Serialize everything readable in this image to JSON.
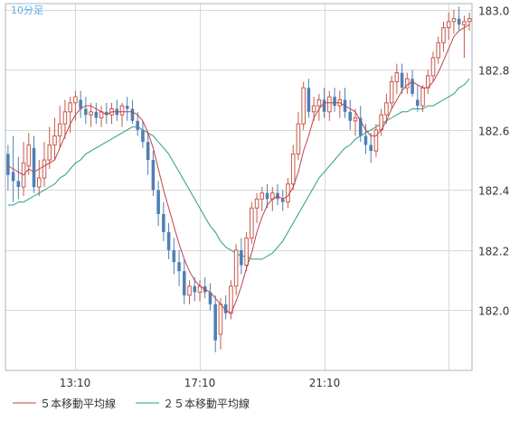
{
  "chart_data": {
    "type": "candlestick",
    "timeframe_label": "10分足",
    "x_tick_labels": [
      "13:10",
      "17:10",
      "21:10"
    ],
    "y_ticks": [
      182.0,
      182.2,
      182.4,
      182.6,
      182.8,
      183.0
    ],
    "y_tick_labels": [
      "182.0",
      "182.2",
      "182.4",
      "182.6",
      "182.8",
      "183.0"
    ],
    "ylim": [
      181.8,
      183.02
    ],
    "grid": true,
    "colors": {
      "up": "#c45a4a",
      "down": "#4f7fb5",
      "ma5": "#c0404a",
      "ma25": "#2aa078",
      "grid": "#d8d8d8",
      "axis": "#aab4bf",
      "timeframe_text": "#5aaee8"
    },
    "legend": [
      {
        "name": "５本移動平均線",
        "color": "#c0404a"
      },
      {
        "name": "２５本移動平均線",
        "color": "#2aa078"
      }
    ],
    "ohlc": [
      [
        182.52,
        182.55,
        182.4,
        182.45
      ],
      [
        182.46,
        182.58,
        182.36,
        182.43
      ],
      [
        182.43,
        182.51,
        182.37,
        182.41
      ],
      [
        182.41,
        182.56,
        182.38,
        182.49
      ],
      [
        182.48,
        182.59,
        182.45,
        182.55
      ],
      [
        182.54,
        182.58,
        182.39,
        182.41
      ],
      [
        182.41,
        182.5,
        182.38,
        182.44
      ],
      [
        182.44,
        182.56,
        182.41,
        182.5
      ],
      [
        182.5,
        182.61,
        182.47,
        182.55
      ],
      [
        182.55,
        182.64,
        182.5,
        182.58
      ],
      [
        182.58,
        182.68,
        182.54,
        182.62
      ],
      [
        182.62,
        182.7,
        182.57,
        182.66
      ],
      [
        182.66,
        182.71,
        182.59,
        182.69
      ],
      [
        182.69,
        182.73,
        182.63,
        182.71
      ],
      [
        182.7,
        182.73,
        182.64,
        182.67
      ],
      [
        182.67,
        182.71,
        182.62,
        182.65
      ],
      [
        182.65,
        182.69,
        182.61,
        182.66
      ],
      [
        182.66,
        182.69,
        182.62,
        182.64
      ],
      [
        182.64,
        182.68,
        182.61,
        182.66
      ],
      [
        182.66,
        182.69,
        182.62,
        182.65
      ],
      [
        182.65,
        182.69,
        182.62,
        182.67
      ],
      [
        182.67,
        182.7,
        182.63,
        182.65
      ],
      [
        182.65,
        182.69,
        182.61,
        182.68
      ],
      [
        182.68,
        182.71,
        182.63,
        182.67
      ],
      [
        182.67,
        182.7,
        182.62,
        182.63
      ],
      [
        182.63,
        182.66,
        182.58,
        182.6
      ],
      [
        182.6,
        182.63,
        182.54,
        182.56
      ],
      [
        182.56,
        182.59,
        182.45,
        182.5
      ],
      [
        182.5,
        182.53,
        182.38,
        182.4
      ],
      [
        182.4,
        182.43,
        182.28,
        182.32
      ],
      [
        182.32,
        182.36,
        182.23,
        182.26
      ],
      [
        182.26,
        182.29,
        182.17,
        182.2
      ],
      [
        182.2,
        182.24,
        182.12,
        182.16
      ],
      [
        182.16,
        182.2,
        182.08,
        182.13
      ],
      [
        182.13,
        182.17,
        182.02,
        182.05
      ],
      [
        182.05,
        182.1,
        182.02,
        182.08
      ],
      [
        182.08,
        182.11,
        182.03,
        182.06
      ],
      [
        182.06,
        182.1,
        182.03,
        182.08
      ],
      [
        182.08,
        182.11,
        182.04,
        182.06
      ],
      [
        182.06,
        182.09,
        182.0,
        182.02
      ],
      [
        182.02,
        182.05,
        181.86,
        181.9
      ],
      [
        181.92,
        182.04,
        181.87,
        182.02
      ],
      [
        182.02,
        182.05,
        181.97,
        181.99
      ],
      [
        181.99,
        182.1,
        181.97,
        182.08
      ],
      [
        182.08,
        182.22,
        182.05,
        182.2
      ],
      [
        182.2,
        182.24,
        182.12,
        182.15
      ],
      [
        182.15,
        182.26,
        182.13,
        182.24
      ],
      [
        182.24,
        182.36,
        182.22,
        182.34
      ],
      [
        182.34,
        182.39,
        182.29,
        182.37
      ],
      [
        182.37,
        182.41,
        182.33,
        182.39
      ],
      [
        182.39,
        182.42,
        182.34,
        182.37
      ],
      [
        182.37,
        182.41,
        182.33,
        182.39
      ],
      [
        182.39,
        182.42,
        182.35,
        182.37
      ],
      [
        182.37,
        182.4,
        182.33,
        182.36
      ],
      [
        182.36,
        182.44,
        182.34,
        182.42
      ],
      [
        182.42,
        182.55,
        182.4,
        182.52
      ],
      [
        182.52,
        182.66,
        182.5,
        182.62
      ],
      [
        182.62,
        182.76,
        182.6,
        182.74
      ],
      [
        182.74,
        182.77,
        182.64,
        182.66
      ],
      [
        182.66,
        182.71,
        182.63,
        182.68
      ],
      [
        182.68,
        182.72,
        182.63,
        182.7
      ],
      [
        182.7,
        182.74,
        182.64,
        182.66
      ],
      [
        182.66,
        182.73,
        182.63,
        182.71
      ],
      [
        182.71,
        182.74,
        182.66,
        182.68
      ],
      [
        182.68,
        182.73,
        182.64,
        182.7
      ],
      [
        182.7,
        182.74,
        182.64,
        182.66
      ],
      [
        182.66,
        182.7,
        182.6,
        182.63
      ],
      [
        182.63,
        182.67,
        182.58,
        182.64
      ],
      [
        182.64,
        182.68,
        182.56,
        182.58
      ],
      [
        182.58,
        182.62,
        182.52,
        182.55
      ],
      [
        182.55,
        182.59,
        182.49,
        182.53
      ],
      [
        182.53,
        182.62,
        182.51,
        182.6
      ],
      [
        182.6,
        182.67,
        182.58,
        182.65
      ],
      [
        182.65,
        182.72,
        182.62,
        182.69
      ],
      [
        182.69,
        182.78,
        182.67,
        182.76
      ],
      [
        182.76,
        182.82,
        182.72,
        182.79
      ],
      [
        182.79,
        182.82,
        182.72,
        182.74
      ],
      [
        182.74,
        182.79,
        182.72,
        182.77
      ],
      [
        182.77,
        182.8,
        182.71,
        182.72
      ],
      [
        182.7,
        182.75,
        182.66,
        182.68
      ],
      [
        182.68,
        182.75,
        182.66,
        182.74
      ],
      [
        182.74,
        182.8,
        182.72,
        182.78
      ],
      [
        182.78,
        182.86,
        182.76,
        182.84
      ],
      [
        182.84,
        182.91,
        182.82,
        182.89
      ],
      [
        182.89,
        182.96,
        182.86,
        182.94
      ],
      [
        182.94,
        182.99,
        182.9,
        182.96
      ],
      [
        182.96,
        183.0,
        182.92,
        182.97
      ],
      [
        182.97,
        183.01,
        182.93,
        182.95
      ],
      [
        182.95,
        182.98,
        182.84,
        182.96
      ],
      [
        182.96,
        182.99,
        182.93,
        182.97
      ]
    ],
    "ma5": [
      182.48,
      182.47,
      182.46,
      182.45,
      182.47,
      182.46,
      182.47,
      182.48,
      182.49,
      182.5,
      182.54,
      182.58,
      182.62,
      182.65,
      182.67,
      182.68,
      182.68,
      182.67,
      182.66,
      182.65,
      182.66,
      182.66,
      182.66,
      182.66,
      182.66,
      182.65,
      182.63,
      182.59,
      182.54,
      182.47,
      182.4,
      182.34,
      182.28,
      182.22,
      182.17,
      182.13,
      182.1,
      182.08,
      182.07,
      182.06,
      182.04,
      182.02,
      182.0,
      181.99,
      182.03,
      182.08,
      182.14,
      182.19,
      182.26,
      182.31,
      182.35,
      182.37,
      182.38,
      182.37,
      182.38,
      182.41,
      182.46,
      182.53,
      182.58,
      182.64,
      182.67,
      182.69,
      182.69,
      182.69,
      182.69,
      182.68,
      182.67,
      182.66,
      182.63,
      182.6,
      182.58,
      182.58,
      182.6,
      182.63,
      182.67,
      182.7,
      182.73,
      182.75,
      182.76,
      182.75,
      182.74,
      182.74,
      182.76,
      182.79,
      182.83,
      182.87,
      182.91,
      182.93,
      182.94,
      182.95
    ],
    "ma25": [
      182.35,
      182.35,
      182.36,
      182.36,
      182.37,
      182.38,
      182.39,
      182.4,
      182.41,
      182.42,
      182.44,
      182.45,
      182.47,
      182.49,
      182.5,
      182.52,
      182.53,
      182.54,
      182.55,
      182.56,
      182.57,
      182.58,
      182.59,
      182.6,
      182.61,
      182.61,
      182.6,
      182.59,
      182.58,
      182.56,
      182.54,
      182.52,
      182.49,
      182.46,
      182.43,
      182.4,
      182.37,
      182.34,
      182.31,
      182.28,
      182.26,
      182.23,
      182.21,
      182.2,
      182.19,
      182.18,
      182.18,
      182.17,
      182.17,
      182.17,
      182.18,
      182.19,
      182.21,
      182.23,
      182.26,
      182.29,
      182.32,
      182.35,
      182.38,
      182.41,
      182.44,
      182.46,
      182.48,
      182.5,
      182.52,
      182.54,
      182.55,
      182.57,
      182.58,
      182.59,
      182.6,
      182.61,
      182.62,
      182.63,
      182.64,
      182.65,
      182.66,
      182.66,
      182.67,
      182.67,
      182.67,
      182.68,
      182.68,
      182.69,
      182.7,
      182.71,
      182.72,
      182.74,
      182.75,
      182.77
    ]
  }
}
